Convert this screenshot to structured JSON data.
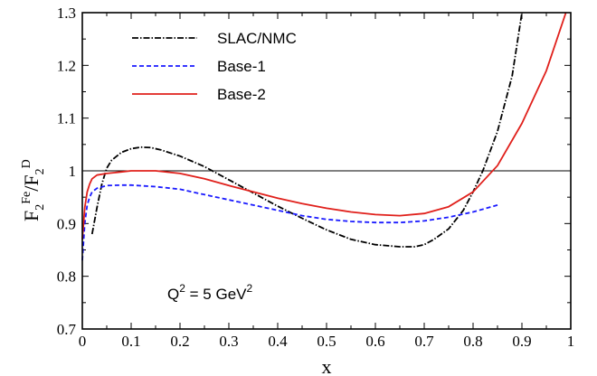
{
  "chart_data": {
    "type": "line",
    "title": "",
    "xlabel": "x",
    "ylabel": {
      "base": "F",
      "sub1": "2",
      "sup1": "Fe",
      "slash": "/F",
      "sub2": "2",
      "sup2": "D"
    },
    "xlim": [
      0,
      1
    ],
    "ylim": [
      0.7,
      1.3
    ],
    "xticks": [
      0,
      0.1,
      0.2,
      0.3,
      0.4,
      0.5,
      0.6,
      0.7,
      0.8,
      0.9,
      1
    ],
    "xtick_labels": [
      "0",
      "0.1",
      "0.2",
      "0.3",
      "0.4",
      "0.5",
      "0.6",
      "0.7",
      "0.8",
      "0.9",
      "1"
    ],
    "yticks": [
      0.7,
      0.8,
      0.9,
      1.0,
      1.1,
      1.2,
      1.3
    ],
    "ytick_labels": [
      "0.7",
      "0.8",
      "0.9",
      "1",
      "1.1",
      "1.2",
      "1.3"
    ],
    "reference_line": 1.0,
    "legend_position": "top-left",
    "annotation": {
      "text": "Q",
      "sup": "2",
      "rest": " = 5 GeV",
      "sup2": "2"
    },
    "grid": false,
    "series": [
      {
        "name": "SLAC/NMC",
        "color": "#000000",
        "style": "dash-dot",
        "x": [
          0.02,
          0.03,
          0.04,
          0.05,
          0.06,
          0.08,
          0.1,
          0.12,
          0.14,
          0.16,
          0.2,
          0.25,
          0.3,
          0.35,
          0.4,
          0.45,
          0.5,
          0.55,
          0.6,
          0.65,
          0.68,
          0.7,
          0.72,
          0.75,
          0.78,
          0.8,
          0.82,
          0.85,
          0.88,
          0.9
        ],
        "y": [
          0.88,
          0.93,
          0.975,
          1.005,
          1.02,
          1.035,
          1.042,
          1.045,
          1.044,
          1.04,
          1.028,
          1.008,
          0.983,
          0.958,
          0.933,
          0.91,
          0.888,
          0.87,
          0.86,
          0.856,
          0.856,
          0.86,
          0.87,
          0.89,
          0.925,
          0.96,
          1.0,
          1.075,
          1.18,
          1.3
        ]
      },
      {
        "name": "Base-1",
        "color": "#1a1aff",
        "style": "dashed",
        "x": [
          0.0,
          0.005,
          0.01,
          0.015,
          0.02,
          0.03,
          0.05,
          0.08,
          0.1,
          0.15,
          0.2,
          0.25,
          0.3,
          0.35,
          0.4,
          0.45,
          0.5,
          0.55,
          0.6,
          0.65,
          0.7,
          0.75,
          0.8,
          0.85
        ],
        "y": [
          0.83,
          0.9,
          0.935,
          0.95,
          0.96,
          0.967,
          0.972,
          0.973,
          0.973,
          0.97,
          0.965,
          0.955,
          0.945,
          0.935,
          0.925,
          0.915,
          0.908,
          0.904,
          0.902,
          0.902,
          0.905,
          0.912,
          0.922,
          0.935
        ]
      },
      {
        "name": "Base-2",
        "color": "#e0201b",
        "style": "solid",
        "x": [
          0.0,
          0.005,
          0.01,
          0.015,
          0.02,
          0.03,
          0.05,
          0.08,
          0.1,
          0.15,
          0.2,
          0.25,
          0.3,
          0.35,
          0.4,
          0.45,
          0.5,
          0.55,
          0.6,
          0.65,
          0.7,
          0.75,
          0.8,
          0.85,
          0.9,
          0.95,
          0.99
        ],
        "y": [
          0.87,
          0.93,
          0.96,
          0.975,
          0.985,
          0.992,
          0.995,
          0.998,
          1.0,
          1.0,
          0.995,
          0.985,
          0.972,
          0.96,
          0.948,
          0.938,
          0.929,
          0.922,
          0.917,
          0.915,
          0.919,
          0.932,
          0.96,
          1.01,
          1.09,
          1.19,
          1.3
        ]
      }
    ]
  }
}
